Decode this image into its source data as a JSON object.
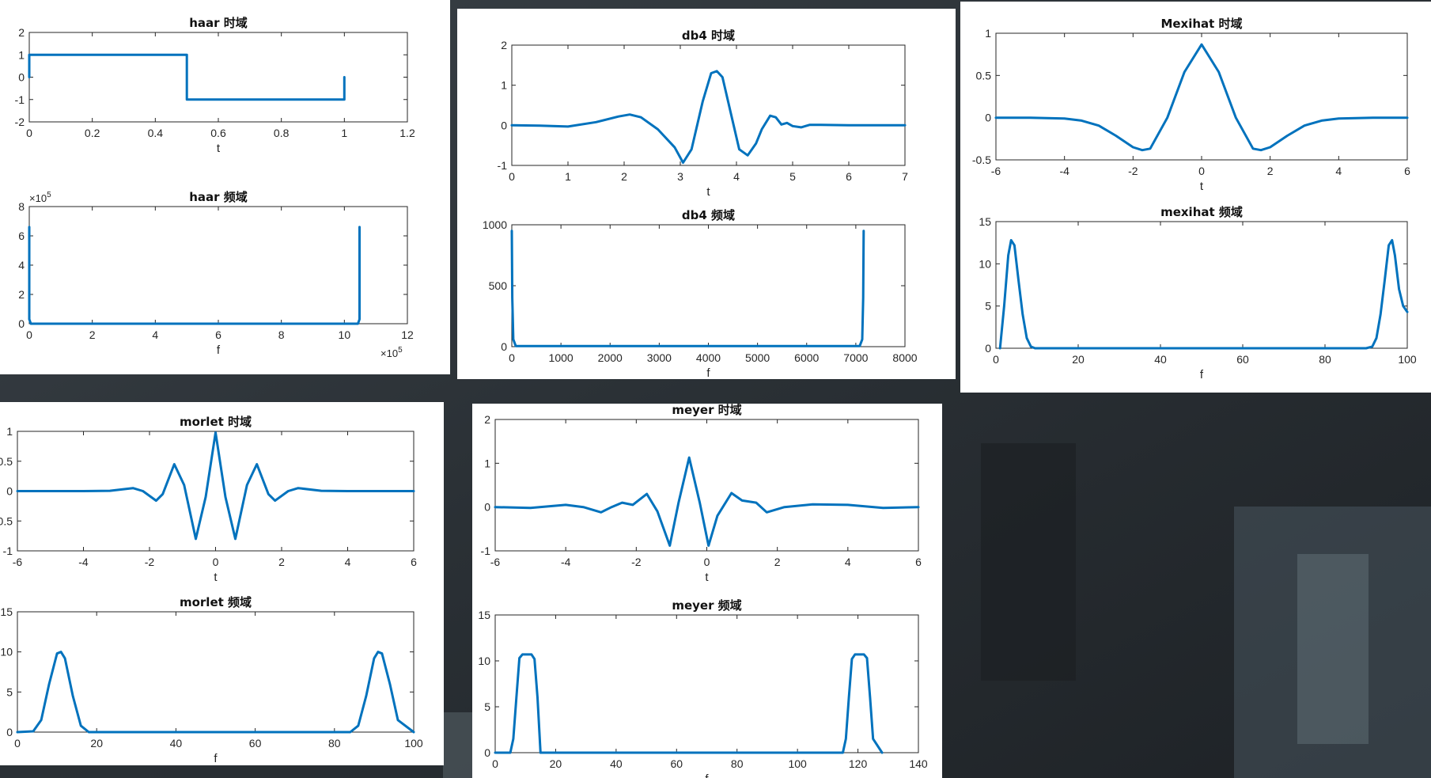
{
  "colors": {
    "series": "#0072bd",
    "axis": "#262626",
    "background_dark": "#2b3136"
  },
  "chart_data": [
    {
      "type": "line",
      "title": "haar 时域",
      "xlabel": "t",
      "ylabel": "",
      "xlim": [
        0,
        1.2
      ],
      "ylim": [
        -2,
        2
      ],
      "xticks": [
        0,
        0.2,
        0.4,
        0.6,
        0.8,
        1,
        1.2
      ],
      "xtick_labels": [
        "0",
        "0.2",
        "0.4",
        "0.6",
        "0.8",
        "1",
        "1.2"
      ],
      "yticks": [
        -2,
        -1,
        0,
        1,
        2
      ],
      "ytick_labels": [
        "-2",
        "-1",
        "0",
        "1",
        "2"
      ],
      "series": [
        {
          "x": [
            0,
            0,
            0.5,
            0.5,
            1,
            1
          ],
          "y": [
            0,
            1,
            1,
            -1,
            -1,
            0
          ]
        }
      ]
    },
    {
      "type": "line",
      "title": "haar 频域",
      "xlabel": "f",
      "ylabel": "",
      "xlim": [
        0,
        12
      ],
      "ylim": [
        0,
        8
      ],
      "x_exponent": "×10",
      "x_exponent_power": "5",
      "y_exponent": "×10",
      "y_exponent_power": "5",
      "xticks": [
        0,
        2,
        4,
        6,
        8,
        10,
        12
      ],
      "xtick_labels": [
        "0",
        "2",
        "4",
        "6",
        "8",
        "10",
        "12"
      ],
      "yticks": [
        0,
        2,
        4,
        6,
        8
      ],
      "ytick_labels": [
        "0",
        "2",
        "4",
        "6",
        "8"
      ],
      "series": [
        {
          "x": [
            0,
            0,
            0.05,
            10.43,
            10.48,
            10.48
          ],
          "y": [
            6.6,
            0.3,
            0,
            0,
            0.3,
            6.6
          ]
        }
      ]
    },
    {
      "type": "line",
      "title": "db4 时域",
      "xlabel": "t",
      "ylabel": "",
      "xlim": [
        0,
        7
      ],
      "ylim": [
        -1,
        2
      ],
      "xticks": [
        0,
        1,
        2,
        3,
        4,
        5,
        6,
        7
      ],
      "xtick_labels": [
        "0",
        "1",
        "2",
        "3",
        "4",
        "5",
        "6",
        "7"
      ],
      "yticks": [
        -1,
        0,
        1,
        2
      ],
      "ytick_labels": [
        "-1",
        "0",
        "1",
        "2"
      ],
      "series": [
        {
          "x": [
            0,
            0.5,
            1,
            1.5,
            1.9,
            2.1,
            2.3,
            2.6,
            2.9,
            3.05,
            3.2,
            3.4,
            3.55,
            3.65,
            3.75,
            3.9,
            4.05,
            4.2,
            4.35,
            4.45,
            4.6,
            4.7,
            4.8,
            4.9,
            5.0,
            5.15,
            5.3,
            5.5,
            6,
            7
          ],
          "y": [
            0,
            -0.01,
            -0.03,
            0.08,
            0.22,
            0.27,
            0.2,
            -0.1,
            -0.55,
            -0.93,
            -0.6,
            0.6,
            1.3,
            1.35,
            1.2,
            0.3,
            -0.6,
            -0.75,
            -0.45,
            -0.1,
            0.24,
            0.2,
            0.02,
            0.06,
            -0.02,
            -0.05,
            0.01,
            0.01,
            0,
            0
          ]
        }
      ]
    },
    {
      "type": "line",
      "title": "db4 频域",
      "xlabel": "f",
      "ylabel": "",
      "xlim": [
        0,
        8000
      ],
      "ylim": [
        0,
        1000
      ],
      "xticks": [
        0,
        1000,
        2000,
        3000,
        4000,
        5000,
        6000,
        7000,
        8000
      ],
      "xtick_labels": [
        "0",
        "1000",
        "2000",
        "3000",
        "4000",
        "5000",
        "6000",
        "7000",
        "8000"
      ],
      "yticks": [
        0,
        500,
        1000
      ],
      "ytick_labels": [
        "0",
        "500",
        "1000"
      ],
      "series": [
        {
          "x": [
            0,
            10,
            30,
            80,
            7080,
            7130,
            7150,
            7160
          ],
          "y": [
            950,
            400,
            60,
            5,
            5,
            60,
            400,
            950
          ]
        }
      ]
    },
    {
      "type": "line",
      "title": "Mexihat 时域",
      "xlabel": "t",
      "ylabel": "",
      "xlim": [
        -6,
        6
      ],
      "ylim": [
        -0.5,
        1
      ],
      "xticks": [
        -6,
        -4,
        -2,
        0,
        2,
        4,
        6
      ],
      "xtick_labels": [
        "-6",
        "-4",
        "-2",
        "0",
        "2",
        "4",
        "6"
      ],
      "yticks": [
        -0.5,
        0,
        0.5,
        1
      ],
      "ytick_labels": [
        "-0.5",
        "0",
        "0.5",
        "1"
      ],
      "series": [
        {
          "x": [
            -6,
            -5,
            -4,
            -3.5,
            -3,
            -2.5,
            -2,
            -1.73,
            -1.5,
            -1,
            -0.5,
            0,
            0.5,
            1,
            1.5,
            1.73,
            2,
            2.5,
            3,
            3.5,
            4,
            5,
            6
          ],
          "y": [
            0,
            -0.001,
            -0.011,
            -0.035,
            -0.094,
            -0.214,
            -0.35,
            -0.385,
            -0.367,
            -0.0,
            0.541,
            0.867,
            0.541,
            -0.0,
            -0.367,
            -0.385,
            -0.35,
            -0.214,
            -0.094,
            -0.035,
            -0.011,
            -0.001,
            0
          ]
        }
      ]
    },
    {
      "type": "line",
      "title": "mexihat 频域",
      "xlabel": "f",
      "ylabel": "",
      "xlim": [
        0,
        100
      ],
      "ylim": [
        0,
        15
      ],
      "xticks": [
        0,
        20,
        40,
        60,
        80,
        100
      ],
      "xtick_labels": [
        "0",
        "20",
        "40",
        "60",
        "80",
        "100"
      ],
      "yticks": [
        0,
        5,
        10,
        15
      ],
      "ytick_labels": [
        "0",
        "5",
        "10",
        "15"
      ],
      "series": [
        {
          "x": [
            1,
            2,
            3,
            3.7,
            4.5,
            5.5,
            6.5,
            7.5,
            8.5,
            9.5,
            90,
            91.5,
            92.5,
            93.5,
            94.5,
            95.5,
            96.3,
            97,
            98,
            99,
            100
          ],
          "y": [
            0,
            5,
            11,
            12.8,
            12.2,
            8,
            4,
            1.2,
            0.2,
            0,
            0,
            0.2,
            1.2,
            4,
            8,
            12.2,
            12.8,
            11,
            7,
            5,
            4.3
          ]
        }
      ]
    },
    {
      "type": "line",
      "title": "morlet 时域",
      "xlabel": "t",
      "ylabel": "",
      "xlim": [
        -6,
        6
      ],
      "ylim": [
        -1,
        1
      ],
      "xticks": [
        -6,
        -4,
        -2,
        0,
        2,
        4,
        6
      ],
      "xtick_labels": [
        "-6",
        "-4",
        "-2",
        "0",
        "2",
        "4",
        "6"
      ],
      "yticks": [
        -1,
        -0.5,
        0,
        0.5,
        1
      ],
      "ytick_labels": [
        "-1",
        "-0.5",
        "0",
        "0.5",
        "1"
      ],
      "series": [
        {
          "x": [
            -6,
            -4,
            -3.2,
            -2.5,
            -2.2,
            -1.8,
            -1.6,
            -1.25,
            -0.95,
            -0.6,
            -0.3,
            0,
            0.3,
            0.6,
            0.95,
            1.25,
            1.6,
            1.8,
            2.2,
            2.5,
            3.2,
            4,
            6
          ],
          "y": [
            0,
            0,
            0.005,
            0.05,
            0.0,
            -0.16,
            -0.05,
            0.45,
            0.1,
            -0.8,
            -0.1,
            0.98,
            -0.1,
            -0.8,
            0.1,
            0.45,
            -0.05,
            -0.16,
            0.0,
            0.05,
            0.005,
            0,
            0
          ]
        }
      ]
    },
    {
      "type": "line",
      "title": "morlet 频域",
      "xlabel": "f",
      "ylabel": "",
      "xlim": [
        0,
        100
      ],
      "ylim": [
        0,
        15
      ],
      "xticks": [
        0,
        20,
        40,
        60,
        80,
        100
      ],
      "xtick_labels": [
        "0",
        "20",
        "40",
        "60",
        "80",
        "100"
      ],
      "yticks": [
        0,
        5,
        10,
        15
      ],
      "ytick_labels": [
        "0",
        "5",
        "10",
        "15"
      ],
      "series": [
        {
          "x": [
            0,
            4,
            6,
            8,
            10,
            11,
            12,
            14,
            16,
            18,
            84,
            86,
            88,
            90,
            91,
            92,
            94,
            96,
            100
          ],
          "y": [
            0,
            0.1,
            1.5,
            6,
            9.8,
            10,
            9.2,
            4.5,
            0.8,
            0,
            0,
            0.8,
            4.5,
            9.2,
            10,
            9.8,
            6,
            1.5,
            0
          ]
        }
      ]
    },
    {
      "type": "line",
      "title": "meyer 时域",
      "xlabel": "t",
      "ylabel": "",
      "xlim": [
        -6,
        6
      ],
      "ylim": [
        -1,
        2
      ],
      "xticks": [
        -6,
        -4,
        -2,
        0,
        2,
        4,
        6
      ],
      "xtick_labels": [
        "-6",
        "-4",
        "-2",
        "0",
        "2",
        "4",
        "6"
      ],
      "yticks": [
        -1,
        0,
        1,
        2
      ],
      "ytick_labels": [
        "-1",
        "0",
        "1",
        "2"
      ],
      "series": [
        {
          "x": [
            -6,
            -5,
            -4,
            -3.5,
            -3,
            -2.7,
            -2.4,
            -2.1,
            -1.7,
            -1.4,
            -1.05,
            -0.8,
            -0.5,
            -0.2,
            0.05,
            0.3,
            0.7,
            1.0,
            1.4,
            1.7,
            2.2,
            3,
            4,
            5,
            6
          ],
          "y": [
            0,
            -0.02,
            0.05,
            0.0,
            -0.12,
            0.0,
            0.1,
            0.05,
            0.3,
            -0.1,
            -0.88,
            0.1,
            1.13,
            0.1,
            -0.88,
            -0.2,
            0.32,
            0.15,
            0.1,
            -0.12,
            0.0,
            0.06,
            0.05,
            -0.02,
            0.0
          ]
        }
      ]
    },
    {
      "type": "line",
      "title": "meyer 频域",
      "xlabel": "f",
      "ylabel": "",
      "xlim": [
        0,
        140
      ],
      "ylim": [
        0,
        15
      ],
      "xticks": [
        0,
        20,
        40,
        60,
        80,
        100,
        120,
        140
      ],
      "xtick_labels": [
        "0",
        "20",
        "40",
        "60",
        "80",
        "100",
        "120",
        "140"
      ],
      "yticks": [
        0,
        5,
        10,
        15
      ],
      "ytick_labels": [
        "0",
        "5",
        "10",
        "15"
      ],
      "series": [
        {
          "x": [
            0,
            5,
            6,
            7,
            8,
            9,
            12,
            13,
            14,
            15,
            115,
            116,
            117,
            118,
            119,
            122,
            123,
            124,
            125,
            128
          ],
          "y": [
            0,
            0,
            1.5,
            6,
            10.3,
            10.7,
            10.7,
            10.2,
            6,
            0,
            0,
            1.5,
            6,
            10.2,
            10.7,
            10.7,
            10.3,
            6,
            1.5,
            0
          ]
        }
      ]
    }
  ]
}
